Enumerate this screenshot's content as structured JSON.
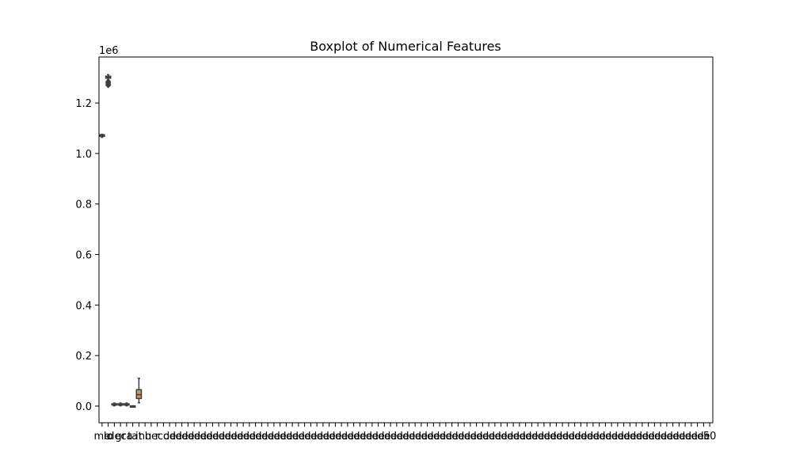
{
  "chart_data": {
    "type": "boxplot",
    "title": "Boxplot of Numerical Features",
    "xlabel": "",
    "ylabel": "",
    "y_offset_label": "1e6",
    "ylim": [
      -0.066,
      1.382
    ],
    "yticks": [
      0.0,
      0.2,
      0.4,
      0.6,
      0.8,
      1.0,
      1.2
    ],
    "ytick_labels": [
      "0.0",
      "0.2",
      "0.4",
      "0.6",
      "0.8",
      "1.0",
      "1.2"
    ],
    "grid": false,
    "legend": "none",
    "categories": [
      "me",
      "lo",
      "de",
      "gr",
      "ca",
      "ta",
      "it",
      "nu",
      "he",
      "r",
      "co",
      "de",
      "de",
      "de",
      "de",
      "de",
      "de",
      "de",
      "de",
      "de",
      "de",
      "de",
      "de",
      "de",
      "de",
      "de",
      "de",
      "de",
      "de",
      "de",
      "de",
      "de",
      "de",
      "de",
      "de",
      "de",
      "de",
      "de",
      "de",
      "de",
      "de",
      "de",
      "de",
      "de",
      "de",
      "de",
      "de",
      "de",
      "de",
      "de",
      "de",
      "de",
      "de",
      "de",
      "de",
      "de",
      "de",
      "de",
      "de",
      "de",
      "de",
      "de",
      "de",
      "de",
      "de",
      "de",
      "de",
      "de",
      "de",
      "de",
      "de",
      "de",
      "de",
      "de",
      "de",
      "de",
      "de",
      "de",
      "de",
      "de",
      "de",
      "de",
      "de",
      "de",
      "de",
      "de",
      "de",
      "de",
      "de",
      "de",
      "de",
      "de",
      "de",
      "de",
      "de",
      "de",
      "de",
      "de",
      "de",
      "50"
    ],
    "category_count_note": "",
    "series": [
      {
        "category_index": 0,
        "color": "#3a5a7c",
        "q1": 1.068,
        "median": 1.071,
        "q3": 1.074,
        "whisker_low": 1.064,
        "whisker_high": 1.076,
        "outliers": []
      },
      {
        "category_index": 1,
        "color": "#b07140",
        "q1": 1.298,
        "median": 1.302,
        "q3": 1.306,
        "whisker_low": 1.292,
        "whisker_high": 1.312,
        "outliers": [
          1.285,
          1.28,
          1.275,
          1.27
        ]
      },
      {
        "category_index": 2,
        "color": "#4a7a4a",
        "q1": 0.004,
        "median": 0.006,
        "q3": 0.009,
        "whisker_low": 0.001,
        "whisker_high": 0.012,
        "outliers": []
      },
      {
        "category_index": 3,
        "color": "#a84a4a",
        "q1": 0.004,
        "median": 0.006,
        "q3": 0.009,
        "whisker_low": 0.001,
        "whisker_high": 0.012,
        "outliers": []
      },
      {
        "category_index": 4,
        "color": "#6b5a8e",
        "q1": 0.004,
        "median": 0.006,
        "q3": 0.009,
        "whisker_low": 0.001,
        "whisker_high": 0.012,
        "outliers": []
      },
      {
        "category_index": 5,
        "color": "#8a6e5a",
        "q1": 0.0,
        "median": 0.0,
        "q3": 0.0005,
        "whisker_low": 0.0,
        "whisker_high": 0.001,
        "outliers": []
      },
      {
        "category_index": 6,
        "color": "#c99a5a",
        "q1": 0.03,
        "median": 0.045,
        "q3": 0.065,
        "whisker_low": 0.013,
        "whisker_high": 0.11,
        "outliers": []
      }
    ]
  }
}
